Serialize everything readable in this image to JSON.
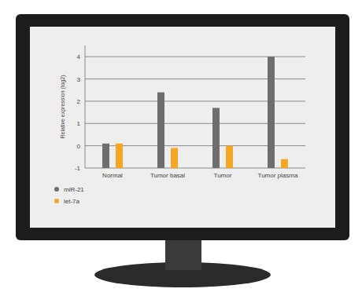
{
  "chart_data": {
    "type": "bar",
    "y_label": "Relative expression (log2)",
    "categories": [
      "Normal",
      "Tumor basal",
      "Tumor",
      "Tumor plasma"
    ],
    "series": [
      {
        "name": "miR-21",
        "color": "#6e6e6e",
        "values": [
          0.1,
          2.4,
          1.7,
          4.0
        ]
      },
      {
        "name": "let-7a",
        "color": "#f5a623",
        "values": [
          0.1,
          -0.1,
          0,
          -0.6
        ]
      }
    ],
    "ylim": [
      -1,
      4.5
    ],
    "yticks": [
      -1,
      0,
      1,
      2,
      3,
      4
    ],
    "grid": true,
    "legend": "bottom-left"
  }
}
